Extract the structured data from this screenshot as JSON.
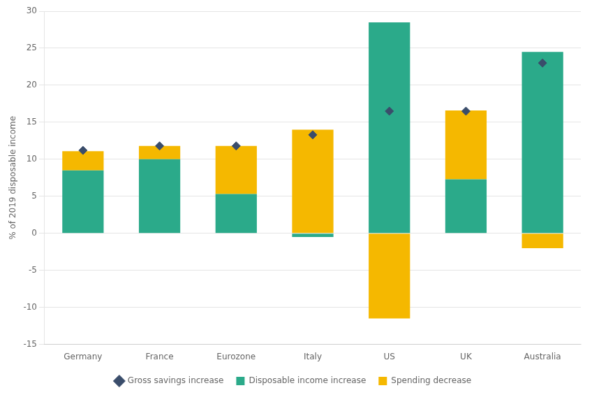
{
  "chart_data": {
    "type": "bar",
    "categories": [
      "Germany",
      "France",
      "Eurozone",
      "Italy",
      "US",
      "UK",
      "Australia"
    ],
    "series": [
      {
        "name": "Disposable income increase",
        "color": "#2baa8a",
        "values": [
          8.5,
          10.0,
          5.3,
          -0.5,
          28.5,
          7.3,
          24.5
        ]
      },
      {
        "name": "Spending decrease",
        "color": "#f5b800",
        "values": [
          2.6,
          1.8,
          6.5,
          14.0,
          -11.5,
          9.3,
          -2.0
        ]
      },
      {
        "name": "Gross savings increase",
        "color": "#3a4d6b",
        "type": "scatter",
        "marker": "diamond",
        "values": [
          11.2,
          11.8,
          11.8,
          13.3,
          16.5,
          16.5,
          23.0
        ]
      }
    ],
    "ylabel": "% of 2019 disposable income",
    "ylim": [
      -15,
      30
    ],
    "yticks": [
      -15,
      -10,
      -5,
      0,
      5,
      10,
      15,
      20,
      25,
      30
    ],
    "stacked": true,
    "grid": "y",
    "legend": "bottom"
  }
}
